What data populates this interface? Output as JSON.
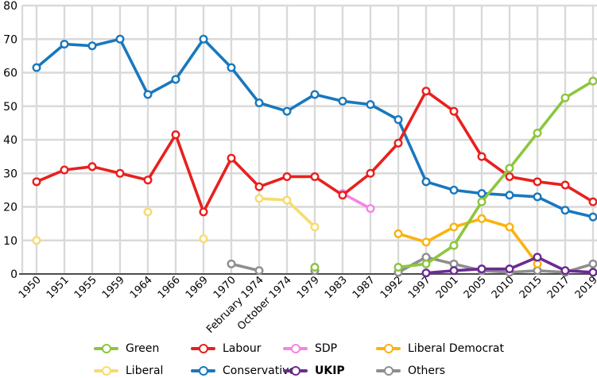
{
  "chart_data": {
    "type": "line",
    "title": "",
    "xlabel": "",
    "ylabel": "",
    "ylim": [
      0,
      80
    ],
    "y_ticks": [
      0,
      10,
      20,
      30,
      40,
      50,
      60,
      70,
      80
    ],
    "grid": true,
    "categories": [
      "1950",
      "1951",
      "1955",
      "1959",
      "1964",
      "1966",
      "1969",
      "1970",
      "February 1974",
      "October 1974",
      "1979",
      "1983",
      "1987",
      "1992",
      "1997",
      "2001",
      "2005",
      "2010",
      "2015",
      "2017",
      "2019"
    ],
    "series": [
      {
        "name": "Others",
        "color": "#8E8E8E",
        "bold_label": false,
        "values": [
          null,
          null,
          null,
          null,
          null,
          null,
          null,
          3,
          1,
          null,
          1,
          null,
          null,
          0.5,
          5,
          3,
          1,
          0.5,
          1,
          0.5,
          3
        ]
      },
      {
        "name": "Liberal",
        "color": "#F8DB6D",
        "bold_label": false,
        "values": [
          10,
          null,
          null,
          null,
          18.5,
          null,
          10.5,
          null,
          22.5,
          22,
          14,
          null,
          null,
          null,
          null,
          null,
          null,
          null,
          null,
          null,
          null
        ]
      },
      {
        "name": "SDP",
        "color": "#F584E4",
        "bold_label": false,
        "values": [
          null,
          null,
          null,
          null,
          null,
          null,
          null,
          null,
          null,
          null,
          null,
          24,
          19.5,
          null,
          null,
          null,
          null,
          null,
          null,
          null,
          null
        ]
      },
      {
        "name": "Liberal Democrat",
        "color": "#FAB30E",
        "bold_label": false,
        "values": [
          null,
          null,
          null,
          null,
          null,
          null,
          null,
          null,
          null,
          null,
          null,
          null,
          null,
          12,
          9.5,
          14,
          16.5,
          14,
          3,
          null,
          null
        ]
      },
      {
        "name": "UKIP",
        "color": "#6B2C91",
        "bold_label": true,
        "values": [
          null,
          null,
          null,
          null,
          null,
          null,
          null,
          null,
          null,
          null,
          null,
          null,
          null,
          null,
          0.3,
          1,
          1.5,
          1.5,
          5,
          1,
          0.5
        ]
      },
      {
        "name": "Conservative",
        "color": "#1878BE",
        "bold_label": false,
        "values": [
          61.5,
          68.5,
          68,
          70,
          53.5,
          58,
          70,
          61.5,
          51,
          48.5,
          53.5,
          51.5,
          50.5,
          46,
          27.5,
          25,
          24,
          23.5,
          23,
          19,
          17
        ]
      },
      {
        "name": "Labour",
        "color": "#E8201E",
        "bold_label": false,
        "values": [
          27.5,
          31,
          32,
          30,
          28,
          41.5,
          18.5,
          34.5,
          26,
          29,
          29,
          23.5,
          30,
          39,
          54.5,
          48.5,
          35,
          29,
          27.5,
          26.5,
          21.5
        ]
      },
      {
        "name": "Green",
        "color": "#8DC63F",
        "bold_label": false,
        "values": [
          null,
          null,
          null,
          null,
          null,
          null,
          null,
          null,
          null,
          null,
          2,
          null,
          null,
          2,
          3,
          8.5,
          21.5,
          31.5,
          42,
          52.5,
          57.5
        ]
      }
    ],
    "legend": {
      "position": "bottom",
      "rows": [
        [
          "Green",
          "Labour",
          "SDP",
          "Liberal Democrat"
        ],
        [
          "Liberal",
          "Conservative",
          "UKIP",
          "Others"
        ]
      ]
    },
    "colors": {
      "grid": "#D9D9D9",
      "axis": "#4D4D4D",
      "tick_text": "#000000"
    }
  }
}
